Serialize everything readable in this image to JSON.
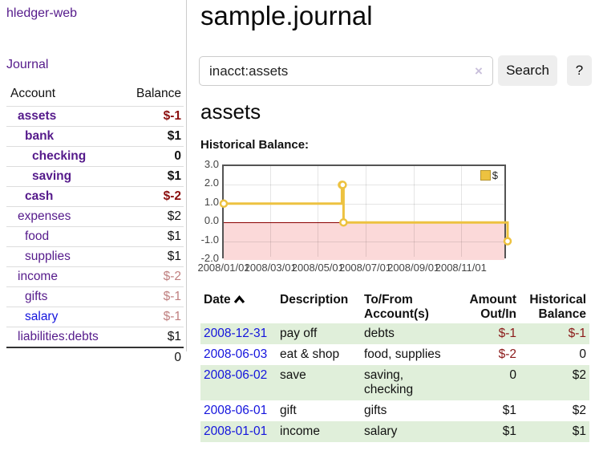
{
  "colors": {
    "link_purple": "#551a8b",
    "link_blue": "#1414dd",
    "negative_strong": "#8b0f0f",
    "negative_dim": "#c08080",
    "row_stripe_green": "#e0efda",
    "series_yellow": "#EDC240",
    "negative_region_pink": "#fbd9d9",
    "zero_line_red": "#8b0000"
  },
  "sidebar": {
    "app_title": "hledger-web",
    "journal_label": "Journal",
    "accounts_table": {
      "headers": {
        "account": "Account",
        "balance": "Balance"
      },
      "rows": [
        {
          "name": "assets",
          "depth": 1,
          "bold": true,
          "blue": false,
          "balance": "$-1",
          "balance_class": "neg-strong"
        },
        {
          "name": "bank",
          "depth": 2,
          "bold": true,
          "blue": false,
          "balance": "$1",
          "balance_class": "pos-strong"
        },
        {
          "name": "checking",
          "depth": 3,
          "bold": true,
          "blue": false,
          "balance": "0",
          "balance_class": "pos-strong"
        },
        {
          "name": "saving",
          "depth": 3,
          "bold": true,
          "blue": false,
          "balance": "$1",
          "balance_class": "pos-strong"
        },
        {
          "name": "cash",
          "depth": 2,
          "bold": true,
          "blue": false,
          "balance": "$-2",
          "balance_class": "neg-strong"
        },
        {
          "name": "expenses",
          "depth": 1,
          "bold": false,
          "blue": false,
          "balance": "$2",
          "balance_class": "pos"
        },
        {
          "name": "food",
          "depth": 2,
          "bold": false,
          "blue": false,
          "balance": "$1",
          "balance_class": "pos"
        },
        {
          "name": "supplies",
          "depth": 2,
          "bold": false,
          "blue": false,
          "balance": "$1",
          "balance_class": "pos"
        },
        {
          "name": "income",
          "depth": 1,
          "bold": false,
          "blue": false,
          "balance": "$-2",
          "balance_class": "neg-dim"
        },
        {
          "name": "gifts",
          "depth": 2,
          "bold": false,
          "blue": false,
          "balance": "$-1",
          "balance_class": "neg-dim"
        },
        {
          "name": "salary",
          "depth": 2,
          "bold": false,
          "blue": true,
          "balance": "$-1",
          "balance_class": "neg-dim"
        },
        {
          "name": "liabilities:debts",
          "depth": 1,
          "bold": false,
          "blue": false,
          "balance": "$1",
          "balance_class": "pos"
        }
      ],
      "total": "0"
    }
  },
  "main": {
    "title": "sample.journal",
    "search": {
      "value": "inacct:assets",
      "clear_icon": "×",
      "button_label": "Search",
      "help_label": "?"
    },
    "account_heading": "assets",
    "chart_label": "Historical Balance:"
  },
  "chart_data": {
    "type": "line",
    "title": "Historical Balance",
    "step": true,
    "x_range": [
      "2008-01-01",
      "2008-12-31"
    ],
    "y_range": [
      -2,
      3
    ],
    "y_ticks": [
      {
        "label": "3.0",
        "value": 3
      },
      {
        "label": "2.0",
        "value": 2
      },
      {
        "label": "1.0",
        "value": 1
      },
      {
        "label": "0.0",
        "value": 0
      },
      {
        "label": "-1.0",
        "value": -1
      },
      {
        "label": "-2.0",
        "value": -2
      }
    ],
    "x_ticks": [
      {
        "label": "2008/01/01",
        "date": "2008-01-01"
      },
      {
        "label": "2008/03/01",
        "date": "2008-03-01"
      },
      {
        "label": "2008/05/01",
        "date": "2008-05-01"
      },
      {
        "label": "2008/07/01",
        "date": "2008-07-01"
      },
      {
        "label": "2008/09/01",
        "date": "2008-09-01"
      },
      {
        "label": "2008/11/01",
        "date": "2008-11-01"
      }
    ],
    "series": [
      {
        "name": "$",
        "color": "#EDC240",
        "points": [
          {
            "date": "2008-01-01",
            "value": 1
          },
          {
            "date": "2008-06-01",
            "value": 2
          },
          {
            "date": "2008-06-02",
            "value": 2
          },
          {
            "date": "2008-06-03",
            "value": 0
          },
          {
            "date": "2008-12-31",
            "value": -1
          }
        ]
      }
    ],
    "legend": {
      "label": "$",
      "position": "top-right"
    },
    "grid": true,
    "negative_region_shaded": true
  },
  "transactions": {
    "headers": {
      "date": "Date",
      "description": "Description",
      "accounts": "To/From Account(s)",
      "amount": "Amount Out/In",
      "balance": "Historical Balance"
    },
    "sort": {
      "column": "date",
      "direction": "ascending-icon"
    },
    "rows": [
      {
        "date": "2008-12-31",
        "description": "pay off",
        "accounts": "debts",
        "amount": "$-1",
        "amount_class": "neg",
        "balance": "$-1",
        "balance_class": "neg",
        "stripe": true
      },
      {
        "date": "2008-06-03",
        "description": "eat & shop",
        "accounts": "food, supplies",
        "amount": "$-2",
        "amount_class": "neg",
        "balance": "0",
        "balance_class": "pos",
        "stripe": false
      },
      {
        "date": "2008-06-02",
        "description": "save",
        "accounts": "saving, checking",
        "amount": "0",
        "amount_class": "pos",
        "balance": "$2",
        "balance_class": "pos",
        "stripe": true
      },
      {
        "date": "2008-06-01",
        "description": "gift",
        "accounts": "gifts",
        "amount": "$1",
        "amount_class": "pos",
        "balance": "$2",
        "balance_class": "pos",
        "stripe": false
      },
      {
        "date": "2008-01-01",
        "description": "income",
        "accounts": "salary",
        "amount": "$1",
        "amount_class": "pos",
        "balance": "$1",
        "balance_class": "pos",
        "stripe": true
      }
    ]
  }
}
